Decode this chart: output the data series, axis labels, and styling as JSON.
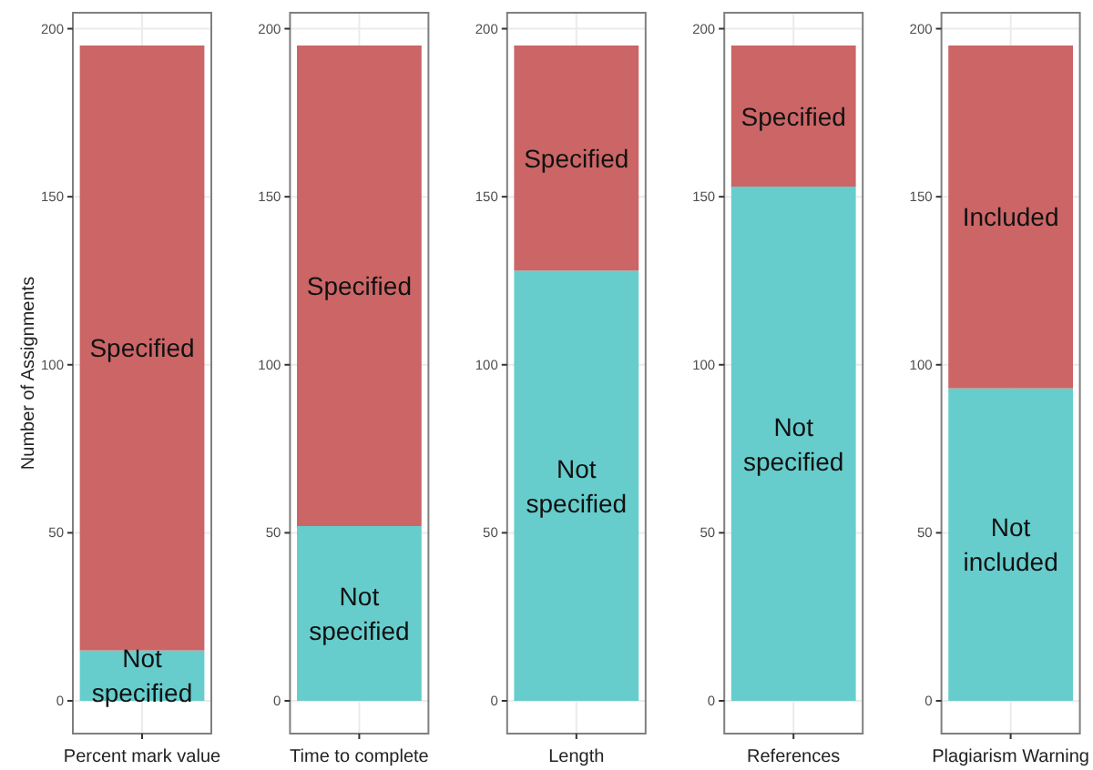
{
  "chart_data": [
    {
      "type": "bar",
      "stacked": true,
      "ylabel": "Number of Assignments",
      "categories": [
        "Percent mark value"
      ],
      "ylim": [
        -9.75,
        204.75
      ],
      "yticks": [
        0,
        50,
        100,
        150,
        200
      ],
      "grid": true,
      "legend": false,
      "series": [
        {
          "name": "Not specified",
          "color": "#66cdcc",
          "values": [
            15
          ]
        },
        {
          "name": "Specified",
          "color": "#cb6566",
          "values": [
            180
          ]
        }
      ]
    },
    {
      "type": "bar",
      "stacked": true,
      "categories": [
        "Time to complete"
      ],
      "ylim": [
        -9.75,
        204.75
      ],
      "yticks": [
        0,
        50,
        100,
        150,
        200
      ],
      "grid": true,
      "legend": false,
      "series": [
        {
          "name": "Not specified",
          "color": "#66cdcc",
          "values": [
            52
          ]
        },
        {
          "name": "Specified",
          "color": "#cb6566",
          "values": [
            143
          ]
        }
      ]
    },
    {
      "type": "bar",
      "stacked": true,
      "categories": [
        "Length"
      ],
      "ylim": [
        -9.75,
        204.75
      ],
      "yticks": [
        0,
        50,
        100,
        150,
        200
      ],
      "grid": true,
      "legend": false,
      "series": [
        {
          "name": "Not specified",
          "color": "#66cdcc",
          "values": [
            128
          ]
        },
        {
          "name": "Specified",
          "color": "#cb6566",
          "values": [
            67
          ]
        }
      ]
    },
    {
      "type": "bar",
      "stacked": true,
      "categories": [
        "References"
      ],
      "ylim": [
        -9.75,
        204.75
      ],
      "yticks": [
        0,
        50,
        100,
        150,
        200
      ],
      "grid": true,
      "legend": false,
      "series": [
        {
          "name": "Not specified",
          "color": "#66cdcc",
          "values": [
            153
          ]
        },
        {
          "name": "Specified",
          "color": "#cb6566",
          "values": [
            42
          ]
        }
      ]
    },
    {
      "type": "bar",
      "stacked": true,
      "categories": [
        "Plagiarism Warning"
      ],
      "ylim": [
        -9.75,
        204.75
      ],
      "yticks": [
        0,
        50,
        100,
        150,
        200
      ],
      "grid": true,
      "legend": false,
      "series": [
        {
          "name": "Not included",
          "color": "#66cdcc",
          "values": [
            93
          ]
        },
        {
          "name": "Included",
          "color": "#cb6566",
          "values": [
            102
          ]
        }
      ]
    }
  ]
}
